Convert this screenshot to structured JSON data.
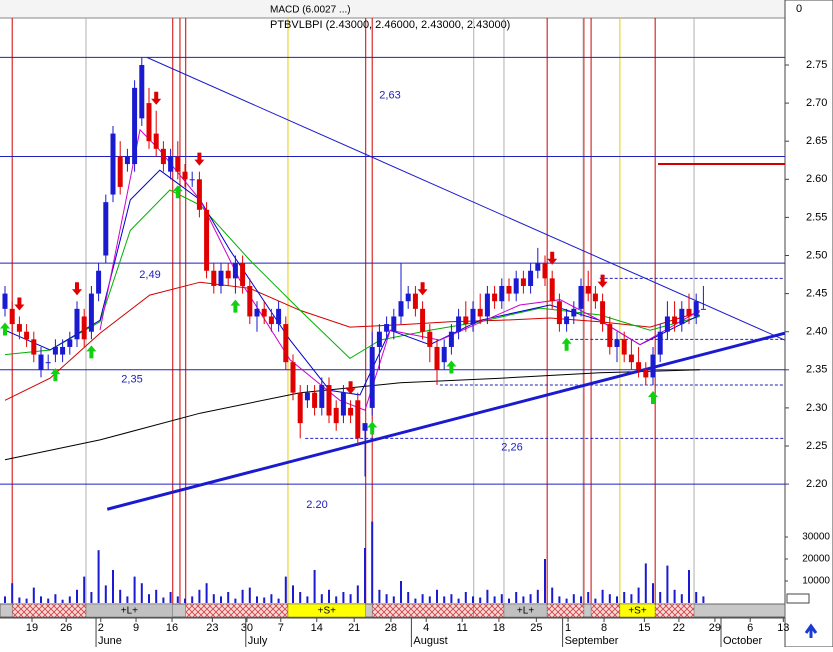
{
  "chart_data": {
    "type": "candlestick",
    "title": "PTBVLBPI (2.43000, 2.46000, 2.43000, 2.43000)",
    "subtitle": "MACD (6.0027 ...)",
    "ylim": [
      2.15,
      2.8
    ],
    "yticks": [
      {
        "value": 2.2,
        "label": "2.20"
      },
      2.25,
      {
        "value": 2.3,
        "label": "2.30"
      },
      2.35,
      {
        "value": 2.4,
        "label": "2.40"
      },
      2.45,
      {
        "value": 2.5,
        "label": "2.50"
      },
      2.55,
      {
        "value": 2.6,
        "label": "2.60"
      },
      2.65,
      {
        "value": 2.7,
        "label": "2.70"
      },
      2.75
    ],
    "vol_ticks": [
      10000,
      20000,
      30000
    ],
    "top_tick": 0,
    "xticks": [
      {
        "value": 3.75,
        "label": "19"
      },
      {
        "value": 8.5,
        "label": "26"
      },
      {
        "value": 13.3,
        "label": "2"
      },
      {
        "value": 18.2,
        "label": "9"
      },
      {
        "value": 23.2,
        "label": "16"
      },
      {
        "value": 28.8,
        "label": "23"
      },
      {
        "value": 33.6,
        "label": "30"
      },
      {
        "value": 38.3,
        "label": "7"
      },
      {
        "value": 43.3,
        "label": "14"
      },
      {
        "value": 48.5,
        "label": "21"
      },
      {
        "value": 53.6,
        "label": "28"
      },
      {
        "value": 58.5,
        "label": "4"
      },
      {
        "value": 63.5,
        "label": "11"
      },
      {
        "value": 68.6,
        "label": "18"
      },
      {
        "value": 73.8,
        "label": "25"
      },
      {
        "value": 78.2,
        "label": "1"
      },
      {
        "value": 83.2,
        "label": "8"
      },
      {
        "value": 88.8,
        "label": "15"
      },
      {
        "value": 93.6,
        "label": "22"
      },
      {
        "value": 98.6,
        "label": "29"
      },
      {
        "value": 103.5,
        "label": "6"
      },
      {
        "value": 108.1,
        "label": "13"
      }
    ],
    "months": [
      {
        "value": 13.2,
        "label": "June"
      },
      {
        "value": 34,
        "label": "July"
      },
      {
        "value": 57,
        "label": "August"
      },
      {
        "value": 78,
        "label": "September"
      },
      {
        "value": 100,
        "label": "October"
      }
    ],
    "ohlc": [
      [
        2.43,
        2.46,
        2.42,
        2.45
      ],
      [
        2.43,
        2.44,
        2.4,
        2.41
      ],
      [
        2.41,
        2.42,
        2.39,
        2.4
      ],
      [
        2.4,
        2.41,
        2.38,
        2.39
      ],
      [
        2.39,
        2.4,
        2.36,
        2.37
      ],
      [
        2.35,
        2.38,
        2.34,
        2.37
      ],
      [
        2.36,
        2.37,
        2.35,
        2.36
      ],
      [
        2.37,
        2.39,
        2.36,
        2.38
      ],
      [
        2.37,
        2.39,
        2.36,
        2.38
      ],
      [
        2.38,
        2.4,
        2.37,
        2.39
      ],
      [
        2.39,
        2.44,
        2.38,
        2.43
      ],
      [
        2.42,
        2.43,
        2.38,
        2.39
      ],
      [
        2.4,
        2.46,
        2.39,
        2.45
      ],
      [
        2.45,
        2.49,
        2.44,
        2.48
      ],
      [
        2.5,
        2.58,
        2.49,
        2.57
      ],
      [
        2.58,
        2.67,
        2.57,
        2.66
      ],
      [
        2.63,
        2.65,
        2.58,
        2.59
      ],
      [
        2.62,
        2.64,
        2.61,
        2.63
      ],
      [
        2.62,
        2.73,
        2.61,
        2.72
      ],
      [
        2.68,
        2.76,
        2.67,
        2.75
      ],
      [
        2.7,
        2.72,
        2.64,
        2.65
      ],
      [
        2.66,
        2.69,
        2.63,
        2.64
      ],
      [
        2.64,
        2.65,
        2.61,
        2.62
      ],
      [
        2.61,
        2.64,
        2.6,
        2.63
      ],
      [
        2.63,
        2.65,
        2.6,
        2.61
      ],
      [
        2.61,
        2.62,
        2.59,
        2.6
      ],
      [
        2.6,
        2.61,
        2.59,
        2.6
      ],
      [
        2.6,
        2.61,
        2.55,
        2.56
      ],
      [
        2.56,
        2.57,
        2.47,
        2.48
      ],
      [
        2.48,
        2.49,
        2.45,
        2.46
      ],
      [
        2.46,
        2.49,
        2.45,
        2.48
      ],
      [
        2.48,
        2.49,
        2.46,
        2.47
      ],
      [
        2.47,
        2.5,
        2.45,
        2.49
      ],
      [
        2.49,
        2.5,
        2.45,
        2.46
      ],
      [
        2.46,
        2.47,
        2.41,
        2.42
      ],
      [
        2.42,
        2.44,
        2.4,
        2.43
      ],
      [
        2.43,
        2.44,
        2.41,
        2.42
      ],
      [
        2.42,
        2.43,
        2.4,
        2.41
      ],
      [
        2.41,
        2.44,
        2.4,
        2.43
      ],
      [
        2.41,
        2.42,
        2.35,
        2.36
      ],
      [
        2.36,
        2.37,
        2.31,
        2.32
      ],
      [
        2.32,
        2.33,
        2.26,
        2.28
      ],
      [
        2.31,
        2.33,
        2.3,
        2.32
      ],
      [
        2.32,
        2.33,
        2.29,
        2.3
      ],
      [
        2.3,
        2.34,
        2.29,
        2.33
      ],
      [
        2.33,
        2.34,
        2.28,
        2.29
      ],
      [
        2.3,
        2.31,
        2.27,
        2.28
      ],
      [
        2.29,
        2.33,
        2.28,
        2.32
      ],
      [
        2.3,
        2.31,
        2.28,
        2.29
      ],
      [
        2.31,
        2.32,
        2.25,
        2.26
      ],
      [
        2.27,
        2.28,
        2.21,
        2.28
      ],
      [
        2.3,
        2.4,
        2.29,
        2.38
      ],
      [
        2.38,
        2.41,
        2.35,
        2.4
      ],
      [
        2.4,
        2.42,
        2.39,
        2.41
      ],
      [
        2.4,
        2.43,
        2.39,
        2.42
      ],
      [
        2.42,
        2.49,
        2.41,
        2.44
      ],
      [
        2.44,
        2.46,
        2.43,
        2.45
      ],
      [
        2.45,
        2.46,
        2.42,
        2.43
      ],
      [
        2.43,
        2.44,
        2.39,
        2.4
      ],
      [
        2.4,
        2.41,
        2.36,
        2.38
      ],
      [
        2.38,
        2.39,
        2.33,
        2.35
      ],
      [
        2.36,
        2.39,
        2.35,
        2.38
      ],
      [
        2.38,
        2.41,
        2.37,
        2.4
      ],
      [
        2.4,
        2.43,
        2.39,
        2.42
      ],
      [
        2.42,
        2.44,
        2.4,
        2.41
      ],
      [
        2.41,
        2.44,
        2.4,
        2.43
      ],
      [
        2.43,
        2.45,
        2.41,
        2.42
      ],
      [
        2.42,
        2.46,
        2.41,
        2.45
      ],
      [
        2.45,
        2.46,
        2.43,
        2.44
      ],
      [
        2.44,
        2.47,
        2.43,
        2.46
      ],
      [
        2.46,
        2.47,
        2.44,
        2.45
      ],
      [
        2.45,
        2.48,
        2.44,
        2.47
      ],
      [
        2.47,
        2.48,
        2.45,
        2.46
      ],
      [
        2.46,
        2.49,
        2.45,
        2.48
      ],
      [
        2.48,
        2.51,
        2.47,
        2.49
      ],
      [
        2.49,
        2.5,
        2.46,
        2.47
      ],
      [
        2.47,
        2.48,
        2.43,
        2.44
      ],
      [
        2.44,
        2.45,
        2.4,
        2.41
      ],
      [
        2.41,
        2.43,
        2.4,
        2.42
      ],
      [
        2.42,
        2.44,
        2.41,
        2.43
      ],
      [
        2.43,
        2.47,
        2.42,
        2.46
      ],
      [
        2.46,
        2.48,
        2.44,
        2.45
      ],
      [
        2.45,
        2.46,
        2.43,
        2.44
      ],
      [
        2.44,
        2.45,
        2.4,
        2.41
      ],
      [
        2.41,
        2.42,
        2.37,
        2.38
      ],
      [
        2.38,
        2.4,
        2.36,
        2.39
      ],
      [
        2.39,
        2.4,
        2.36,
        2.37
      ],
      [
        2.37,
        2.39,
        2.35,
        2.36
      ],
      [
        2.36,
        2.38,
        2.34,
        2.35
      ],
      [
        2.35,
        2.36,
        2.33,
        2.34
      ],
      [
        2.34,
        2.38,
        2.33,
        2.37
      ],
      [
        2.37,
        2.41,
        2.36,
        2.4
      ],
      [
        2.4,
        2.44,
        2.39,
        2.42
      ],
      [
        2.42,
        2.44,
        2.4,
        2.41
      ],
      [
        2.41,
        2.44,
        2.4,
        2.43
      ],
      [
        2.43,
        2.45,
        2.41,
        2.42
      ],
      [
        2.42,
        2.45,
        2.41,
        2.44
      ],
      [
        2.43,
        2.46,
        2.43,
        2.43
      ]
    ],
    "volume": [
      3000,
      9000,
      2500,
      2000,
      7000,
      3000,
      2000,
      4000,
      1500,
      3000,
      6000,
      12000,
      5000,
      24000,
      8000,
      15000,
      6000,
      3000,
      12000,
      9000,
      4000,
      6000,
      2500,
      5000,
      3000,
      2000,
      3000,
      6000,
      9000,
      4000,
      3000,
      5000,
      2000,
      6000,
      7000,
      3000,
      2500,
      4000,
      2000,
      12000,
      8000,
      5000,
      3000,
      15000,
      4000,
      6000,
      3000,
      5000,
      4000,
      8000,
      25000,
      37000,
      6000,
      4000,
      3000,
      10000,
      5000,
      2000,
      4000,
      3000,
      6000,
      3000,
      4000,
      2000,
      5000,
      3000,
      2500,
      6000,
      3000,
      4000,
      2000,
      5000,
      3000,
      4000,
      6000,
      20000,
      7000,
      3000,
      2000,
      4000,
      3000,
      5000,
      2000,
      6000,
      4000,
      3000,
      5000,
      4000,
      7000,
      18000,
      9000,
      5000,
      17000,
      6000,
      4000,
      15000,
      5000,
      3000
    ],
    "moving_averages": [
      {
        "color": "#000000",
        "x": [
          0,
          13.2,
          27.1,
          41,
          54.9,
          68.8,
          82.6,
          96.5
        ],
        "values": [
          2.232,
          2.258,
          2.293,
          2.32,
          2.333,
          2.339,
          2.346,
          2.35
        ]
      },
      {
        "color": "#d00000",
        "x": [
          0,
          6.25,
          13.2,
          20.1,
          27.1,
          34,
          41,
          47.9,
          54.9,
          61.8,
          68.8,
          75.7,
          82.6,
          89.6,
          96.5
        ],
        "values": [
          2.31,
          2.339,
          2.398,
          2.448,
          2.465,
          2.457,
          2.428,
          2.406,
          2.409,
          2.413,
          2.415,
          2.418,
          2.413,
          2.406,
          2.426
        ]
      },
      {
        "color": "#00b000",
        "x": [
          0,
          6.25,
          13.2,
          17.4,
          22.9,
          27.1,
          34,
          41,
          47.9,
          52.1,
          59,
          65.97,
          74.3,
          82.6,
          89.6,
          96.5
        ],
        "values": [
          2.37,
          2.376,
          2.413,
          2.533,
          2.586,
          2.566,
          2.494,
          2.428,
          2.365,
          2.389,
          2.402,
          2.413,
          2.431,
          2.422,
          2.402,
          2.42
        ]
      },
      {
        "color": "#0000d0",
        "x": [
          0,
          6.25,
          13.2,
          17.4,
          21.5,
          27.1,
          31.25,
          39.6,
          45.1,
          49.3,
          53.5,
          59,
          65.97,
          75.7,
          82.6,
          88.2,
          96.5
        ],
        "values": [
          2.402,
          2.376,
          2.415,
          2.573,
          2.612,
          2.573,
          2.507,
          2.389,
          2.323,
          2.317,
          2.402,
          2.383,
          2.415,
          2.435,
          2.415,
          2.383,
          2.422
        ]
      },
      {
        "color": "#d000d0",
        "x": [
          13.2,
          18.75,
          21.5,
          27.1,
          32.6,
          39.6,
          46.5,
          50,
          53.5,
          60.4,
          71.5,
          77.1,
          82.6,
          88.2,
          96.5
        ],
        "values": [
          2.402,
          2.665,
          2.638,
          2.573,
          2.468,
          2.363,
          2.31,
          2.297,
          2.402,
          2.389,
          2.435,
          2.442,
          2.415,
          2.383,
          2.428
        ]
      }
    ],
    "trendlines": [
      {
        "x": [
          19.7,
          108.3
        ],
        "values": [
          2.76,
          2.389
        ],
        "width": 1
      },
      {
        "x": [
          14.2,
          108.3
        ],
        "values": [
          2.167,
          2.398
        ],
        "width": 3
      }
    ],
    "levels": [
      {
        "value": 2.76
      },
      {
        "value": 2.63,
        "label": "2,63"
      },
      {
        "value": 2.49,
        "label": "2,49"
      },
      {
        "value": 2.35,
        "label": "2,35"
      },
      {
        "value": 2.2,
        "label": "2.20"
      }
    ],
    "dashed_levels": [
      {
        "value": 2.47,
        "from": 82.6
      },
      {
        "value": 2.39,
        "from": 78.5
      },
      {
        "value": 2.33,
        "from": 60.4
      },
      {
        "value": 2.26,
        "from": 41.7,
        "label": "2,26"
      }
    ],
    "stop_level": {
      "value": 2.62,
      "from": 90.7
    },
    "buy_signals": [
      0,
      7,
      12,
      24,
      32,
      51,
      62,
      78,
      90
    ],
    "sell_signals": [
      2,
      10,
      21,
      27,
      48,
      58,
      76,
      83
    ],
    "vlines": [
      {
        "color": "#d00000",
        "x": [
          1,
          23.3,
          24.3,
          25.1,
          50.1,
          51,
          75.3,
          80.4,
          81.4,
          90.3
        ]
      },
      {
        "color": "#e6d000",
        "x": [
          39.3,
          85.4
        ]
      },
      {
        "color": "#b0b0b0",
        "x": [
          11.25,
          65.1,
          69.3,
          80.3,
          95.7
        ]
      }
    ],
    "bands": [
      {
        "from": 1,
        "to": 11.25,
        "kind": "hatch"
      },
      {
        "from": 11.25,
        "to": 23.3,
        "kind": "long",
        "label": "+L+"
      },
      {
        "from": 25.1,
        "to": 39.3,
        "kind": "hatch"
      },
      {
        "from": 39.3,
        "to": 50.1,
        "kind": "short",
        "label": "+S+"
      },
      {
        "from": 51,
        "to": 65.1,
        "kind": "hatch"
      },
      {
        "from": 65.1,
        "to": 69.3,
        "kind": "hatch"
      },
      {
        "from": 69.3,
        "to": 75.3,
        "kind": "long",
        "label": "+L+"
      },
      {
        "from": 75.3,
        "to": 80.4,
        "kind": "hatch"
      },
      {
        "from": 81.4,
        "to": 85.4,
        "kind": "hatch"
      },
      {
        "from": 85.4,
        "to": 90.3,
        "kind": "short",
        "label": "+S+"
      },
      {
        "from": 90.3,
        "to": 95.7,
        "kind": "hatch"
      }
    ]
  }
}
